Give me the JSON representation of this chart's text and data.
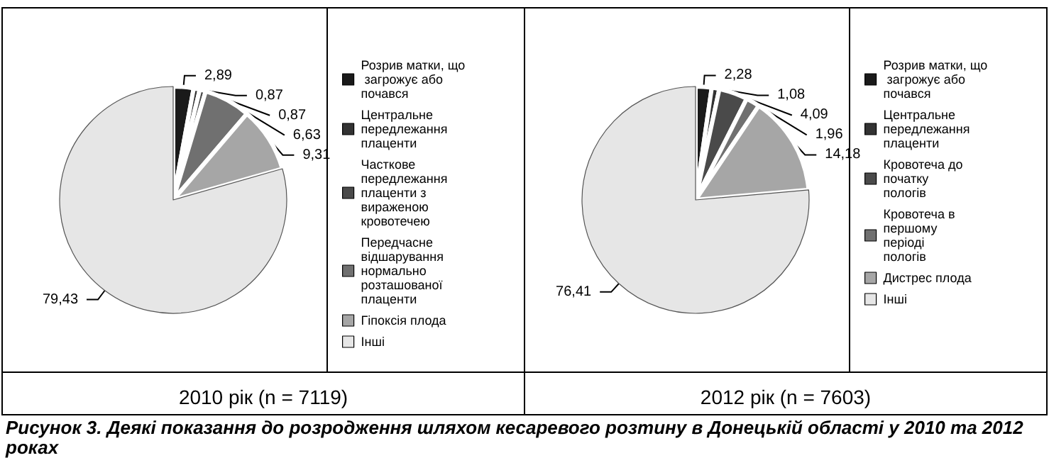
{
  "chart_data": [
    {
      "type": "pie",
      "title": "2010 рік (n = 7119)",
      "categories": [
        "Розрив матки, що загрожує або почався",
        "Центральне передлежання плаценти",
        "Часткове передлежання плаценти з вираженою кровотечею",
        "Передчасне відшарування нормально розташованої плаценти",
        "Гіпоксія плода",
        "Інші"
      ],
      "values": [
        2.89,
        0.87,
        0.87,
        6.63,
        9.31,
        79.43
      ],
      "value_labels": [
        "2,89",
        "0,87",
        "0,87",
        "6,63",
        "9,31",
        "79,43"
      ],
      "colors": [
        "#1a1a1a",
        "#333333",
        "#4a4a4a",
        "#707070",
        "#a6a6a6",
        "#e6e6e6"
      ],
      "legend": "right"
    },
    {
      "type": "pie",
      "title": "2012 рік (n = 7603)",
      "categories": [
        "Розрив матки, що загрожує або почався",
        "Центральне передлежання плаценти",
        "Кровотеча до початку пологів",
        "Кровотеча в першому періоді пологів",
        "Дистрес плода",
        "Інші"
      ],
      "values": [
        2.28,
        1.08,
        4.09,
        1.96,
        14.18,
        76.41
      ],
      "value_labels": [
        "2,28",
        "1,08",
        "4,09",
        "1,96",
        "14,18",
        "76,41"
      ],
      "colors": [
        "#1a1a1a",
        "#333333",
        "#4a4a4a",
        "#707070",
        "#a6a6a6",
        "#e6e6e6"
      ],
      "legend": "right",
      "annotations": [
        "Рисунок 3. Деякі показання до розродження шляхом кесаревого розтину в Донецькій області у 2010 та 2012 роках"
      ]
    }
  ]
}
